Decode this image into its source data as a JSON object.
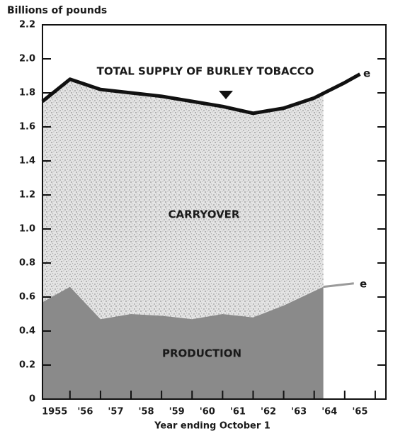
{
  "chart_data": {
    "type": "area",
    "ylabel": "Billions of pounds",
    "xlabel": "Year ending October 1",
    "xlim": [
      1954.6,
      1965.85
    ],
    "ylim": [
      0,
      2.2
    ],
    "xticks": [
      {
        "value": 1955,
        "label": "1955"
      },
      {
        "value": 1956,
        "label": "'56"
      },
      {
        "value": 1957,
        "label": "'57"
      },
      {
        "value": 1958,
        "label": "'58"
      },
      {
        "value": 1959,
        "label": "'59"
      },
      {
        "value": 1960,
        "label": "'60"
      },
      {
        "value": 1961,
        "label": "'61"
      },
      {
        "value": 1962,
        "label": "'62"
      },
      {
        "value": 1963,
        "label": "'63"
      },
      {
        "value": 1964,
        "label": "'64"
      },
      {
        "value": 1965,
        "label": "'65"
      }
    ],
    "xticks_minor": [
      1955.5,
      1956.5,
      1957.5,
      1958.5,
      1959.5,
      1960.5,
      1961.5,
      1962.5,
      1963.5,
      1964.5,
      1965.5
    ],
    "yticks": [
      0,
      0.2,
      0.4,
      0.6,
      0.8,
      {
        "value": 1,
        "label": "1.0"
      },
      1.2,
      1.4,
      1.6,
      1.8,
      {
        "value": 2,
        "label": "2.0"
      },
      2.2
    ],
    "series": [
      {
        "name": "TOTAL SUPPLY OF BURLEY TOBACCO",
        "color": "#111111",
        "end_label": "e",
        "x": [
          1954.6,
          1955.5,
          1956.5,
          1957.5,
          1958.5,
          1959.5,
          1960.5,
          1961.5,
          1962.5,
          1963.5,
          1964.5,
          1965.0
        ],
        "values": [
          1.75,
          1.88,
          1.82,
          1.8,
          1.78,
          1.75,
          1.72,
          1.68,
          1.71,
          1.77,
          1.86,
          1.91
        ]
      },
      {
        "name": "PRODUCTION",
        "color": "#8a8a8a",
        "x": [
          1954.6,
          1955.5,
          1956.5,
          1957.5,
          1958.5,
          1959.5,
          1960.5,
          1961.5,
          1962.5,
          1963.8
        ],
        "values": [
          0.57,
          0.66,
          0.47,
          0.5,
          0.49,
          0.47,
          0.5,
          0.48,
          0.55,
          0.66
        ]
      },
      {
        "color": "#9a9a9a",
        "end_label": "e",
        "x": [
          1963.8,
          1964.8
        ],
        "values": [
          0.66,
          0.68
        ]
      }
    ],
    "fill_label": "CARRYOVER"
  }
}
